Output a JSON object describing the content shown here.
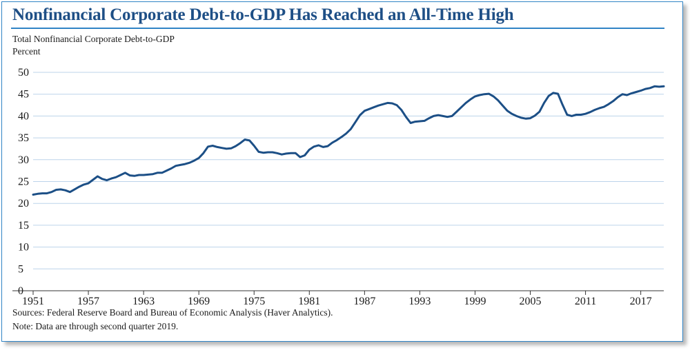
{
  "title": "Nonfinancial Corporate Debt-to-GDP Has Reached an All-Time High",
  "subtitle": "Total Nonfinancial Corporate Debt-to-GDP",
  "unit": "Percent",
  "sources": "Sources: Federal Reserve Board and Bureau of Economic Analysis (Haver Analytics).",
  "note": "Note: Data are through second quarter 2019.",
  "colors": {
    "title": "#1e4f86",
    "rule": "#2f83c5",
    "line": "#1c4f86",
    "grid": "#bcd3ea"
  },
  "chart_data": {
    "type": "line",
    "title": "Total Nonfinancial Corporate Debt-to-GDP",
    "ylabel": "Percent",
    "xlabel": "",
    "ylim": [
      0,
      50
    ],
    "xlim": [
      1951,
      2019.5
    ],
    "yticks": [
      0,
      5,
      10,
      15,
      20,
      25,
      30,
      35,
      40,
      45,
      50
    ],
    "xticks": [
      "1951",
      "1957",
      "1963",
      "1969",
      "1975",
      "1981",
      "1987",
      "1993",
      "1999",
      "2005",
      "2011",
      "2017"
    ],
    "grid": true,
    "series": [
      {
        "name": "Total Nonfinancial Corporate Debt-to-GDP",
        "x": [
          1951.0,
          1951.5,
          1952.0,
          1952.5,
          1953.0,
          1953.5,
          1954.0,
          1954.5,
          1955.0,
          1955.5,
          1956.0,
          1956.5,
          1957.0,
          1957.5,
          1958.0,
          1958.5,
          1959.0,
          1959.5,
          1960.0,
          1960.5,
          1961.0,
          1961.5,
          1962.0,
          1962.5,
          1963.0,
          1963.5,
          1964.0,
          1964.5,
          1965.0,
          1965.5,
          1966.0,
          1966.5,
          1967.0,
          1967.5,
          1968.0,
          1968.5,
          1969.0,
          1969.5,
          1970.0,
          1970.5,
          1971.0,
          1971.5,
          1972.0,
          1972.5,
          1973.0,
          1973.5,
          1974.0,
          1974.5,
          1975.0,
          1975.5,
          1976.0,
          1976.5,
          1977.0,
          1977.5,
          1978.0,
          1978.5,
          1979.0,
          1979.5,
          1980.0,
          1980.5,
          1981.0,
          1981.5,
          1982.0,
          1982.5,
          1983.0,
          1983.5,
          1984.0,
          1984.5,
          1985.0,
          1985.5,
          1986.0,
          1986.5,
          1987.0,
          1987.5,
          1988.0,
          1988.5,
          1989.0,
          1989.5,
          1990.0,
          1990.5,
          1991.0,
          1991.5,
          1992.0,
          1992.5,
          1993.0,
          1993.5,
          1994.0,
          1994.5,
          1995.0,
          1995.5,
          1996.0,
          1996.5,
          1997.0,
          1997.5,
          1998.0,
          1998.5,
          1999.0,
          1999.5,
          2000.0,
          2000.5,
          2001.0,
          2001.5,
          2002.0,
          2002.5,
          2003.0,
          2003.5,
          2004.0,
          2004.5,
          2005.0,
          2005.5,
          2006.0,
          2006.5,
          2007.0,
          2007.5,
          2008.0,
          2008.5,
          2009.0,
          2009.5,
          2010.0,
          2010.5,
          2011.0,
          2011.5,
          2012.0,
          2012.5,
          2013.0,
          2013.5,
          2014.0,
          2014.5,
          2015.0,
          2015.5,
          2016.0,
          2016.5,
          2017.0,
          2017.5,
          2018.0,
          2018.5,
          2019.0,
          2019.5
        ],
        "values": [
          22.0,
          22.2,
          22.3,
          22.3,
          22.6,
          23.1,
          23.2,
          23.0,
          22.6,
          23.2,
          23.8,
          24.3,
          24.6,
          25.4,
          26.2,
          25.6,
          25.3,
          25.7,
          26.0,
          26.5,
          27.0,
          26.4,
          26.3,
          26.5,
          26.5,
          26.6,
          26.7,
          27.0,
          27.0,
          27.5,
          28.0,
          28.6,
          28.8,
          29.0,
          29.3,
          29.8,
          30.4,
          31.5,
          33.0,
          33.2,
          32.9,
          32.7,
          32.5,
          32.6,
          33.1,
          33.8,
          34.6,
          34.4,
          33.2,
          31.8,
          31.6,
          31.7,
          31.7,
          31.5,
          31.2,
          31.4,
          31.5,
          31.5,
          30.6,
          31.0,
          32.3,
          33.0,
          33.3,
          32.9,
          33.1,
          33.9,
          34.5,
          35.2,
          36.0,
          37.0,
          38.6,
          40.2,
          41.2,
          41.6,
          42.0,
          42.4,
          42.7,
          43.0,
          42.9,
          42.5,
          41.4,
          39.8,
          38.4,
          38.7,
          38.8,
          38.9,
          39.5,
          40.0,
          40.2,
          40.0,
          39.8,
          40.0,
          41.0,
          42.0,
          43.0,
          43.8,
          44.5,
          44.8,
          45.0,
          45.1,
          44.5,
          43.6,
          42.4,
          41.2,
          40.5,
          40.0,
          39.6,
          39.4,
          39.5,
          40.1,
          41.0,
          43.0,
          44.6,
          45.3,
          45.1,
          42.6,
          40.3,
          40.0,
          40.3,
          40.3,
          40.5,
          40.9,
          41.4,
          41.8,
          42.1,
          42.7,
          43.4,
          44.3,
          45.0,
          44.8,
          45.2,
          45.5,
          45.8,
          46.2,
          46.4,
          46.8,
          46.7,
          46.8
        ]
      }
    ]
  }
}
